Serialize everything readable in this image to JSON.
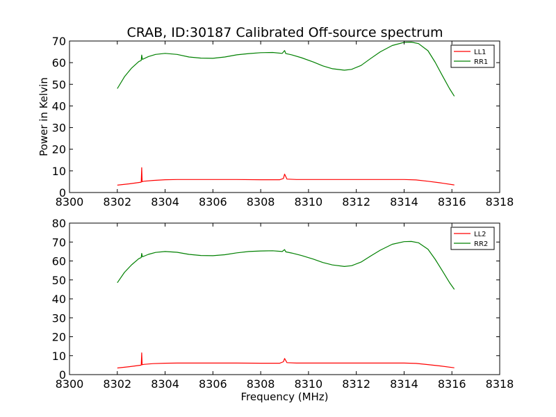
{
  "figure": {
    "title": "CRAB, ID:30187 Calibrated Off-source spectrum"
  },
  "chart_data": [
    {
      "type": "line",
      "title": "CRAB, ID:30187 Calibrated Off-source spectrum",
      "xlabel": "",
      "ylabel": "Power in Kelvin",
      "xlim": [
        8300,
        8318
      ],
      "ylim": [
        0,
        70
      ],
      "xticks": [
        8300,
        8302,
        8304,
        8306,
        8308,
        8310,
        8312,
        8314,
        8316,
        8318
      ],
      "yticks": [
        0,
        10,
        20,
        30,
        40,
        50,
        60,
        70
      ],
      "legend_position": "top-right",
      "grid": false,
      "series": [
        {
          "name": "LL1",
          "color": "#ff0000",
          "x": [
            8302.0,
            8302.5,
            8303.0,
            8303.02,
            8303.04,
            8303.1,
            8303.5,
            8304.0,
            8304.5,
            8305,
            8306,
            8307,
            8308,
            8308.8,
            8308.95,
            8309.0,
            8309.1,
            8309.5,
            8310,
            8311,
            8312,
            8313,
            8314,
            8314.5,
            8315,
            8315.5,
            8316.1
          ],
          "y": [
            3.4,
            4.0,
            4.8,
            11.5,
            5.0,
            5.2,
            5.6,
            5.9,
            6.0,
            6.0,
            6.0,
            6.0,
            5.9,
            5.9,
            6.5,
            8.5,
            6.2,
            6.0,
            6.0,
            6.0,
            6.0,
            6.0,
            6.0,
            5.8,
            5.2,
            4.5,
            3.5
          ]
        },
        {
          "name": "RR1",
          "color": "#008000",
          "x": [
            8302.0,
            8302.3,
            8302.6,
            8302.9,
            8303.0,
            8303.02,
            8303.05,
            8303.3,
            8303.6,
            8304.0,
            8304.5,
            8305.0,
            8305.5,
            8306.0,
            8306.5,
            8307.0,
            8307.5,
            8308.0,
            8308.5,
            8308.9,
            8309.0,
            8309.05,
            8309.3,
            8309.7,
            8310.2,
            8310.6,
            8311.0,
            8311.5,
            8311.8,
            8312.2,
            8312.6,
            8313.0,
            8313.5,
            8314.0,
            8314.3,
            8314.6,
            8315.0,
            8315.3,
            8315.6,
            8315.9,
            8316.1
          ],
          "y": [
            48.0,
            53.5,
            57.5,
            60.5,
            61.0,
            63.5,
            61.5,
            62.8,
            63.8,
            64.3,
            63.8,
            62.6,
            62.1,
            62.0,
            62.6,
            63.6,
            64.2,
            64.6,
            64.7,
            64.3,
            65.6,
            64.2,
            63.6,
            62.3,
            60.3,
            58.5,
            57.2,
            56.5,
            56.9,
            58.7,
            61.9,
            65.0,
            67.9,
            69.4,
            69.5,
            68.8,
            65.5,
            60.2,
            54.0,
            48.0,
            44.5
          ]
        }
      ]
    },
    {
      "type": "line",
      "title": "",
      "xlabel": "Frequency (MHz)",
      "ylabel": "",
      "xlim": [
        8300,
        8318
      ],
      "ylim": [
        0,
        80
      ],
      "xticks": [
        8300,
        8302,
        8304,
        8306,
        8308,
        8310,
        8312,
        8314,
        8316,
        8318
      ],
      "yticks": [
        0,
        10,
        20,
        30,
        40,
        50,
        60,
        70,
        80
      ],
      "legend_position": "top-right",
      "grid": false,
      "series": [
        {
          "name": "LL2",
          "color": "#ff0000",
          "x": [
            8302.0,
            8302.5,
            8303.0,
            8303.02,
            8303.04,
            8303.1,
            8303.5,
            8304.0,
            8304.5,
            8305,
            8306,
            8307,
            8308,
            8308.8,
            8308.95,
            8309.0,
            8309.1,
            8309.5,
            8310,
            8311,
            8312,
            8313,
            8314,
            8314.5,
            8315,
            8315.5,
            8316.1
          ],
          "y": [
            3.5,
            4.2,
            5.0,
            11.5,
            5.2,
            5.4,
            5.8,
            6.0,
            6.1,
            6.1,
            6.1,
            6.1,
            6.0,
            6.0,
            6.8,
            8.5,
            6.3,
            6.1,
            6.1,
            6.1,
            6.1,
            6.1,
            6.1,
            5.9,
            5.3,
            4.6,
            3.6
          ]
        },
        {
          "name": "RR2",
          "color": "#008000",
          "x": [
            8302.0,
            8302.3,
            8302.6,
            8302.9,
            8303.0,
            8303.02,
            8303.05,
            8303.3,
            8303.6,
            8304.0,
            8304.5,
            8305.0,
            8305.5,
            8306.0,
            8306.5,
            8307.0,
            8307.5,
            8308.0,
            8308.5,
            8308.9,
            8309.0,
            8309.05,
            8309.3,
            8309.7,
            8310.2,
            8310.6,
            8311.0,
            8311.5,
            8311.8,
            8312.2,
            8312.6,
            8313.0,
            8313.5,
            8314.0,
            8314.3,
            8314.6,
            8315.0,
            8315.3,
            8315.6,
            8315.9,
            8316.1
          ],
          "y": [
            48.5,
            54.0,
            58.0,
            61.2,
            61.8,
            64.0,
            62.2,
            63.5,
            64.5,
            65.0,
            64.6,
            63.5,
            62.9,
            62.8,
            63.3,
            64.3,
            65.0,
            65.3,
            65.4,
            65.0,
            66.0,
            64.8,
            64.2,
            62.9,
            61.0,
            59.2,
            57.9,
            57.1,
            57.5,
            59.4,
            62.6,
            65.7,
            68.8,
            70.2,
            70.3,
            69.6,
            66.2,
            60.9,
            54.8,
            48.6,
            45.0
          ]
        }
      ]
    }
  ]
}
